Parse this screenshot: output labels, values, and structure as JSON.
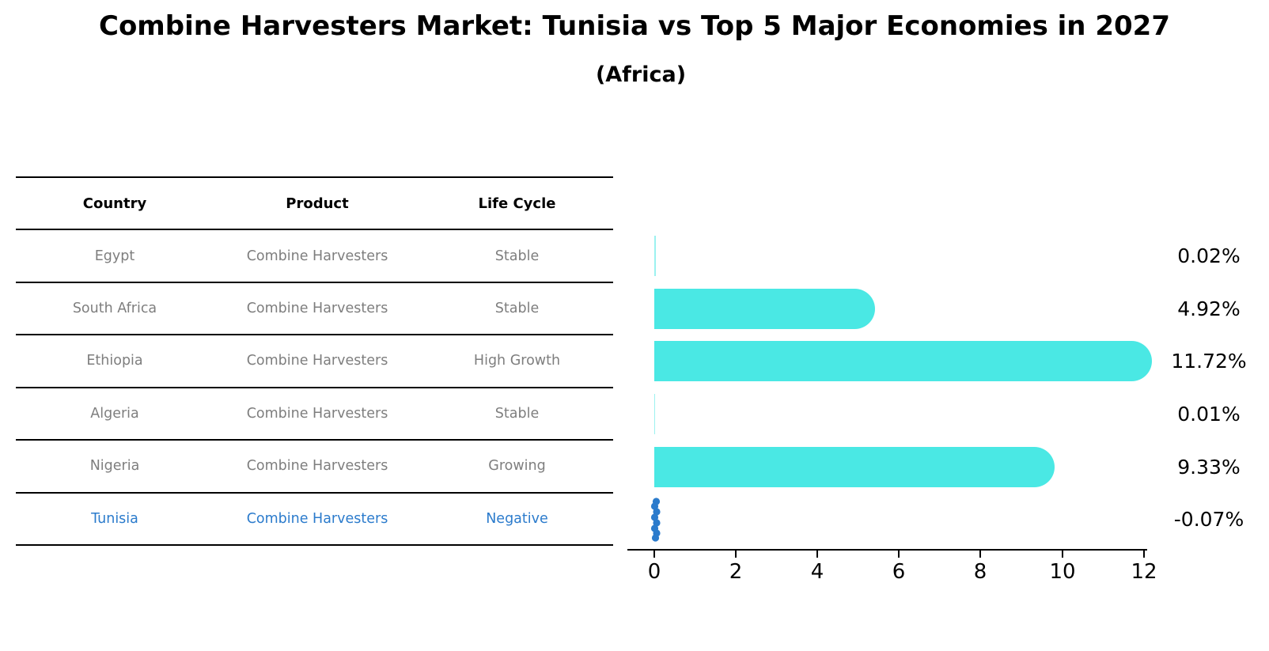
{
  "title": "Combine Harvesters Market: Tunisia vs Top 5 Major Economies in 2027",
  "subtitle": "(Africa)",
  "table": {
    "headers": {
      "country": "Country",
      "product": "Product",
      "life_cycle": "Life Cycle"
    },
    "rows": [
      {
        "country": "Egypt",
        "product": "Combine Harvesters",
        "life_cycle": "Stable",
        "highlight": false
      },
      {
        "country": "South Africa",
        "product": "Combine Harvesters",
        "life_cycle": "Stable",
        "highlight": false
      },
      {
        "country": "Ethiopia",
        "product": "Combine Harvesters",
        "life_cycle": "High Growth",
        "highlight": false
      },
      {
        "country": "Algeria",
        "product": "Combine Harvesters",
        "life_cycle": "Stable",
        "highlight": false
      },
      {
        "country": "Nigeria",
        "product": "Combine Harvesters",
        "life_cycle": "Growing",
        "highlight": false
      },
      {
        "country": "Tunisia",
        "product": "Combine Harvesters",
        "life_cycle": "Negative",
        "highlight": true
      }
    ]
  },
  "chart_data": {
    "type": "bar",
    "orientation": "horizontal",
    "title": "Combine Harvesters Market: Tunisia vs Top 5 Major Economies in 2027 (Africa)",
    "categories": [
      "Egypt",
      "South Africa",
      "Ethiopia",
      "Algeria",
      "Nigeria",
      "Tunisia"
    ],
    "values": [
      0.02,
      4.92,
      11.72,
      0.01,
      9.33,
      -0.07
    ],
    "value_labels": [
      "0.02%",
      "4.92%",
      "11.72%",
      "0.01%",
      "9.33%",
      "-0.07%"
    ],
    "unit": "%",
    "xlim": [
      0,
      12.75
    ],
    "xticks": [
      0,
      2,
      4,
      6,
      8,
      10,
      12
    ],
    "xtick_labels": [
      "0",
      "2",
      "4",
      "6",
      "8",
      "10",
      "12"
    ],
    "grid": false,
    "legend": "none",
    "bar_color": "#4ae8e4",
    "bar_color_faint": "rgba(74,232,228,0.55)",
    "highlight_color": "#2b7bcc",
    "text_color": "#000000",
    "muted_text_color": "#7e7e7e"
  }
}
